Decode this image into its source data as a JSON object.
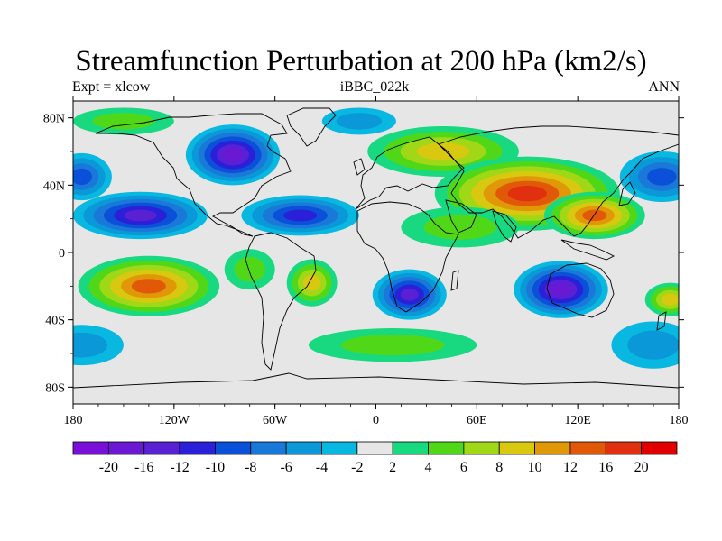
{
  "chart_data": {
    "type": "heatmap",
    "title": "Streamfunction Perturbation at 200 hPa (km2/s)",
    "left_label": "Expt = xlcow",
    "center_label": "iBBC_022k",
    "right_label": "ANN",
    "x_ticks": [
      "180",
      "120W",
      "60W",
      "0",
      "60E",
      "120E",
      "180"
    ],
    "y_ticks": [
      "80N",
      "40N",
      "0",
      "40S",
      "80S"
    ],
    "xlim": [
      -180,
      180
    ],
    "ylim": [
      -90,
      90
    ],
    "colorbar_labels": [
      "-20",
      "-16",
      "-12",
      "-10",
      "-8",
      "-6",
      "-4",
      "-2",
      "2",
      "4",
      "6",
      "8",
      "10",
      "12",
      "16",
      "20"
    ],
    "colorbar_colors": [
      "#7a10d8",
      "#6b18d4",
      "#5a20d4",
      "#2a20d8",
      "#0a50d8",
      "#1a78d8",
      "#0a98d8",
      "#08b8e0",
      "#e6e6e6",
      "#18d880",
      "#50d818",
      "#a0d818",
      "#d8c810",
      "#e09808",
      "#e05808",
      "#e03010",
      "#e00000"
    ],
    "anomalies": [
      {
        "lon": -85,
        "lat": 58,
        "value": -17,
        "rx": 28,
        "ry": 18
      },
      {
        "lon": -140,
        "lat": 22,
        "value": -12,
        "rx": 40,
        "ry": 14
      },
      {
        "lon": -175,
        "lat": 45,
        "value": -8,
        "rx": 18,
        "ry": 14
      },
      {
        "lon": -45,
        "lat": 22,
        "value": -10,
        "rx": 35,
        "ry": 12
      },
      {
        "lon": -150,
        "lat": 78,
        "value": 4,
        "rx": 30,
        "ry": 8
      },
      {
        "lon": -135,
        "lat": -20,
        "value": 14,
        "rx": 42,
        "ry": 18
      },
      {
        "lon": -75,
        "lat": -10,
        "value": 4,
        "rx": 15,
        "ry": 12
      },
      {
        "lon": -38,
        "lat": -18,
        "value": 8,
        "rx": 15,
        "ry": 14
      },
      {
        "lon": -175,
        "lat": -55,
        "value": -4,
        "rx": 25,
        "ry": 12
      },
      {
        "lon": 20,
        "lat": -25,
        "value": -12,
        "rx": 22,
        "ry": 15
      },
      {
        "lon": 110,
        "lat": -22,
        "value": -16,
        "rx": 28,
        "ry": 17
      },
      {
        "lon": 165,
        "lat": -55,
        "value": -5,
        "rx": 25,
        "ry": 14
      },
      {
        "lon": 10,
        "lat": -55,
        "value": 5,
        "rx": 50,
        "ry": 10
      },
      {
        "lon": 40,
        "lat": 60,
        "value": 8,
        "rx": 45,
        "ry": 15
      },
      {
        "lon": 90,
        "lat": 35,
        "value": 18,
        "rx": 55,
        "ry": 22
      },
      {
        "lon": 130,
        "lat": 22,
        "value": 15,
        "rx": 30,
        "ry": 14
      },
      {
        "lon": 50,
        "lat": 15,
        "value": 5,
        "rx": 35,
        "ry": 12
      },
      {
        "lon": 170,
        "lat": 45,
        "value": -8,
        "rx": 25,
        "ry": 15
      },
      {
        "lon": 175,
        "lat": -28,
        "value": 8,
        "rx": 15,
        "ry": 10
      },
      {
        "lon": -10,
        "lat": 78,
        "value": -4,
        "rx": 22,
        "ry": 8
      }
    ]
  }
}
